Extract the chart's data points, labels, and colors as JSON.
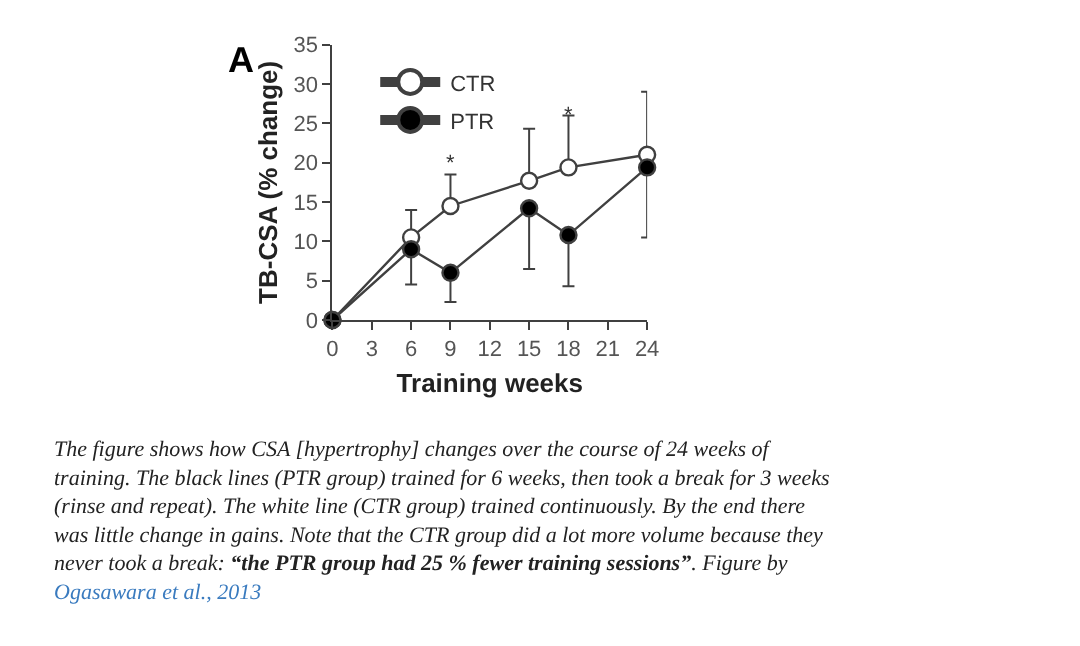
{
  "chart_data": {
    "type": "line",
    "xlabel": "Training weeks",
    "ylabel": "TB-CSA (% change)",
    "x": [
      0,
      6,
      9,
      15,
      18,
      24
    ],
    "series": [
      {
        "name": "CTR",
        "color": "#ffffff",
        "values": [
          0,
          10.5,
          14.5,
          17.7,
          19.4,
          21
        ],
        "errors": [
          null,
          [
            10.5,
            14
          ],
          [
            14.5,
            18.5
          ],
          [
            17.7,
            24.3
          ],
          [
            19.4,
            26
          ],
          [
            21,
            29
          ]
        ]
      },
      {
        "name": "PTR",
        "color": "#000000",
        "values": [
          0,
          9,
          6,
          14.2,
          10.8,
          19.4
        ],
        "errors": [
          null,
          [
            4.5,
            9
          ],
          [
            2.3,
            6
          ],
          [
            6.5,
            14.2
          ],
          [
            4.3,
            10.8
          ],
          [
            10.5,
            19.4
          ]
        ]
      }
    ],
    "xlim": [
      0,
      24
    ],
    "xticks": [
      0,
      3,
      6,
      9,
      12,
      15,
      18,
      21,
      24
    ],
    "ylim": [
      0,
      35
    ],
    "yticks": [
      0,
      5,
      10,
      15,
      20,
      25,
      30,
      35
    ],
    "legend": "top left",
    "marker": "circle",
    "line_style": "solid",
    "annotations": [
      "A",
      "*",
      "*",
      "The figure shows how CSA [hypertrophy] changes over the course of 24 weeks of\ntraining. The black lines (PTR group) trained for 6 weeks, then took a break for 3 weeks\n(rinse and repeat). The white line (CTR group) trained continuously. By the end there\nwas little change in gains. Note that the CTR group did a lot more volume because they\nnever took a break: ",
      "“the PTR group had 25 % fewer training sessions”",
      ". Figure by",
      "Ogasawara et al., 2013"
    ]
  }
}
